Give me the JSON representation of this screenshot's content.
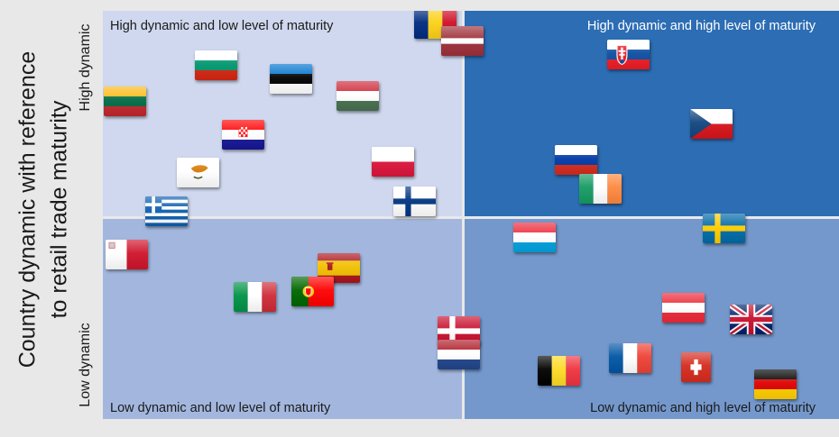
{
  "chart_data": {
    "type": "scatter",
    "ylabel_line1": "Country dynamic with reference",
    "ylabel_line2": "to retail trade maturity",
    "y_tick_high": "High dynamic",
    "y_tick_low": "Low dynamic",
    "x_range": [
      0,
      100
    ],
    "y_range": [
      0,
      100
    ],
    "quadrants": {
      "top_left": {
        "label": "High dynamic and low level of maturity",
        "color": "#cfd8ee",
        "text_color": "#1a1a1a"
      },
      "top_right": {
        "label": "High dynamic and high level of maturity",
        "color": "#2c6db4",
        "text_color": "#ffffff"
      },
      "bottom_left": {
        "label": "Low dynamic and low level of maturity",
        "color": "#a3b7de",
        "text_color": "#1a1a1a"
      },
      "bottom_right": {
        "label": "Low dynamic and high level of maturity",
        "color": "#7498cc",
        "text_color": "#1a1a1a"
      }
    },
    "points": [
      {
        "country": "romania",
        "flag": "romania",
        "x": 45.1,
        "y": 96.7
      },
      {
        "country": "latvia",
        "flag": "latvia",
        "x": 48.8,
        "y": 92.5
      },
      {
        "country": "bulgaria",
        "flag": "bulgaria",
        "x": 15.4,
        "y": 86.7
      },
      {
        "country": "estonia",
        "flag": "estonia",
        "x": 25.5,
        "y": 83.4
      },
      {
        "country": "hungary",
        "flag": "hungary",
        "x": 34.6,
        "y": 79.2
      },
      {
        "country": "lithuania",
        "flag": "lithuania",
        "x": 3.0,
        "y": 77.9
      },
      {
        "country": "slovakia",
        "flag": "slovakia",
        "x": 71.4,
        "y": 89.4
      },
      {
        "country": "czech-republic",
        "flag": "czech",
        "x": 82.6,
        "y": 72.2
      },
      {
        "country": "croatia",
        "flag": "croatia",
        "x": 19.0,
        "y": 69.6
      },
      {
        "country": "poland",
        "flag": "poland",
        "x": 39.4,
        "y": 63.0
      },
      {
        "country": "russia",
        "flag": "russia",
        "x": 64.3,
        "y": 63.4
      },
      {
        "country": "cyprus",
        "flag": "cyprus",
        "x": 12.9,
        "y": 60.3
      },
      {
        "country": "ireland",
        "flag": "ireland",
        "x": 67.6,
        "y": 56.3
      },
      {
        "country": "finland",
        "flag": "finland",
        "x": 42.3,
        "y": 53.4
      },
      {
        "country": "greece",
        "flag": "greece",
        "x": 8.6,
        "y": 50.8
      },
      {
        "country": "sweden",
        "flag": "sweden",
        "x": 84.4,
        "y": 46.6
      },
      {
        "country": "luxembourg",
        "flag": "luxembourg",
        "x": 58.6,
        "y": 44.4
      },
      {
        "country": "malta",
        "flag": "malta",
        "x": 3.2,
        "y": 40.2
      },
      {
        "country": "spain",
        "flag": "spain",
        "x": 32.1,
        "y": 36.9
      },
      {
        "country": "portugal",
        "flag": "portugal",
        "x": 28.5,
        "y": 31.3
      },
      {
        "country": "italy",
        "flag": "italy",
        "x": 20.7,
        "y": 30.0
      },
      {
        "country": "austria",
        "flag": "austria",
        "x": 78.9,
        "y": 27.3
      },
      {
        "country": "united-kingdom",
        "flag": "uk",
        "x": 88.0,
        "y": 24.3
      },
      {
        "country": "denmark",
        "flag": "denmark",
        "x": 48.3,
        "y": 21.6
      },
      {
        "country": "netherlands",
        "flag": "netherlands",
        "x": 48.4,
        "y": 15.7
      },
      {
        "country": "france",
        "flag": "france",
        "x": 71.6,
        "y": 14.8
      },
      {
        "country": "switzerland",
        "flag": "switzerland",
        "x": 80.6,
        "y": 12.8
      },
      {
        "country": "belgium",
        "flag": "belgium",
        "x": 61.9,
        "y": 11.7
      },
      {
        "country": "germany",
        "flag": "germany",
        "x": 91.3,
        "y": 8.6
      }
    ]
  }
}
